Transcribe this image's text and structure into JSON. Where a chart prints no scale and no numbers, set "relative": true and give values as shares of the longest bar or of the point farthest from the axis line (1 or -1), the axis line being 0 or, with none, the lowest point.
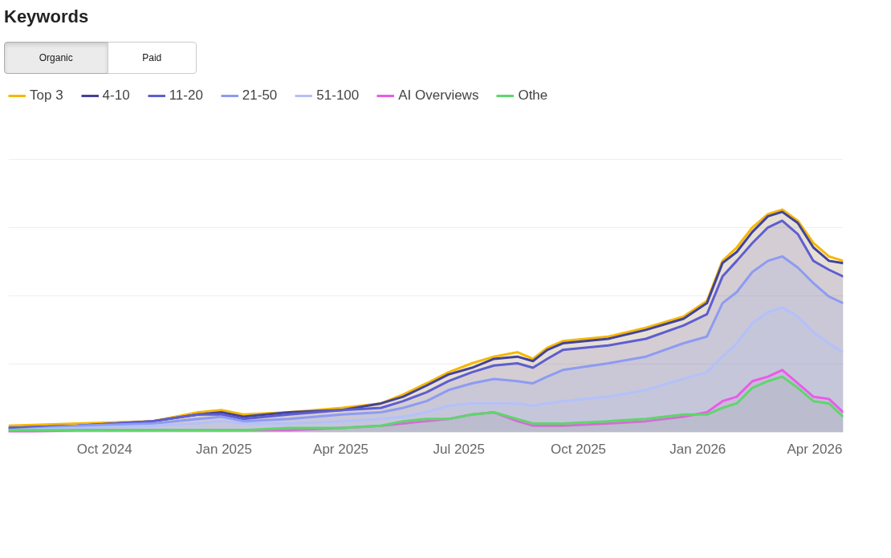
{
  "chart_data": {
    "type": "area",
    "title": "Keywords",
    "relative": true,
    "grid": "y",
    "legend": "top left",
    "annotations": [
      "Organic",
      "Paid"
    ],
    "x": [
      "2024-07-19",
      "2024-09-10",
      "2024-11-07",
      "2024-12-12",
      "2024-12-30",
      "2025-01-16",
      "2025-02-20",
      "2025-04-02",
      "2025-05-02",
      "2025-05-19",
      "2025-06-06",
      "2025-06-23",
      "2025-07-11",
      "2025-07-28",
      "2025-08-15",
      "2025-08-27",
      "2025-09-07",
      "2025-09-19",
      "2025-10-24",
      "2025-11-22",
      "2025-12-21",
      "2026-01-08",
      "2026-01-20",
      "2026-01-31",
      "2026-02-12",
      "2026-02-24",
      "2026-03-07",
      "2026-03-19",
      "2026-03-31",
      "2026-04-12",
      "2026-04-23"
    ],
    "xlim": [
      "2024-07-19",
      "2026-04-23"
    ],
    "xticks": [
      {
        "value": "2024-10-01",
        "label": "Oct 2024"
      },
      {
        "value": "2025-01-01",
        "label": "Jan 2025"
      },
      {
        "value": "2025-04-01",
        "label": "Apr 2025"
      },
      {
        "value": "2025-07-01",
        "label": "Jul 2025"
      },
      {
        "value": "2025-10-01",
        "label": "Oct 2025"
      },
      {
        "value": "2026-01-01",
        "label": "Jan 2026"
      },
      {
        "value": "2026-04-01",
        "label": "Apr 2026"
      }
    ],
    "series": [
      {
        "name": "Top 3",
        "color": "#f5b800",
        "values": [
          0.03,
          0.04,
          0.05,
          0.09,
          0.1,
          0.08,
          0.09,
          0.11,
          0.13,
          0.17,
          0.22,
          0.27,
          0.31,
          0.34,
          0.36,
          0.33,
          0.38,
          0.41,
          0.43,
          0.47,
          0.52,
          0.59,
          0.77,
          0.83,
          0.92,
          0.98,
          1.0,
          0.95,
          0.85,
          0.79,
          0.77
        ]
      },
      {
        "name": "4-10",
        "color": "#43439b",
        "values": [
          0.02,
          0.03,
          0.05,
          0.08,
          0.09,
          0.07,
          0.09,
          0.1,
          0.13,
          0.16,
          0.21,
          0.26,
          0.29,
          0.33,
          0.34,
          0.32,
          0.37,
          0.4,
          0.42,
          0.46,
          0.51,
          0.58,
          0.76,
          0.81,
          0.9,
          0.97,
          0.99,
          0.94,
          0.83,
          0.77,
          0.76
        ]
      },
      {
        "name": "11-20",
        "color": "#5e5ed1",
        "values": [
          0.02,
          0.03,
          0.05,
          0.08,
          0.08,
          0.06,
          0.08,
          0.1,
          0.11,
          0.14,
          0.18,
          0.23,
          0.27,
          0.3,
          0.31,
          0.29,
          0.33,
          0.37,
          0.39,
          0.42,
          0.48,
          0.53,
          0.7,
          0.77,
          0.85,
          0.92,
          0.95,
          0.89,
          0.77,
          0.73,
          0.7
        ]
      },
      {
        "name": "21-50",
        "color": "#8d9bf2",
        "values": [
          0.01,
          0.03,
          0.04,
          0.06,
          0.07,
          0.05,
          0.06,
          0.08,
          0.09,
          0.11,
          0.14,
          0.19,
          0.22,
          0.24,
          0.23,
          0.22,
          0.25,
          0.28,
          0.31,
          0.34,
          0.4,
          0.43,
          0.58,
          0.63,
          0.72,
          0.77,
          0.79,
          0.74,
          0.67,
          0.61,
          0.58
        ]
      },
      {
        "name": "51-100",
        "color": "#b3c1fb",
        "values": [
          0.01,
          0.02,
          0.03,
          0.04,
          0.05,
          0.04,
          0.04,
          0.05,
          0.06,
          0.07,
          0.09,
          0.12,
          0.13,
          0.13,
          0.13,
          0.12,
          0.13,
          0.14,
          0.16,
          0.19,
          0.24,
          0.27,
          0.34,
          0.4,
          0.49,
          0.54,
          0.56,
          0.52,
          0.45,
          0.4,
          0.36
        ]
      },
      {
        "name": "AI Overviews",
        "color": "#e85ce8",
        "values": [
          0.0,
          0.01,
          0.01,
          0.01,
          0.01,
          0.01,
          0.01,
          0.02,
          0.03,
          0.04,
          0.05,
          0.06,
          0.08,
          0.09,
          0.05,
          0.03,
          0.03,
          0.03,
          0.04,
          0.05,
          0.07,
          0.09,
          0.14,
          0.16,
          0.23,
          0.25,
          0.28,
          0.22,
          0.16,
          0.15,
          0.09
        ]
      },
      {
        "name": "Othe",
        "color": "#5ed66b",
        "values": [
          0.01,
          0.01,
          0.01,
          0.01,
          0.01,
          0.01,
          0.02,
          0.02,
          0.03,
          0.05,
          0.06,
          0.06,
          0.08,
          0.09,
          0.06,
          0.04,
          0.04,
          0.04,
          0.05,
          0.06,
          0.08,
          0.08,
          0.11,
          0.13,
          0.2,
          0.23,
          0.25,
          0.2,
          0.14,
          0.13,
          0.07
        ]
      }
    ]
  }
}
